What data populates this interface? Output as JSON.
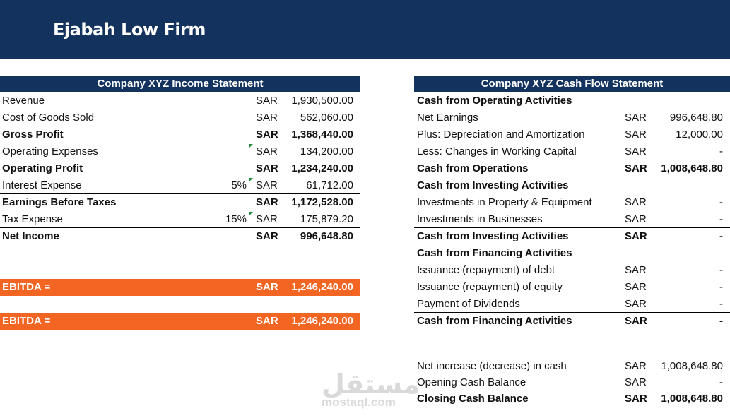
{
  "header": {
    "title": "Ejabah Low Firm"
  },
  "income_statement": {
    "title": "Company XYZ Income Statement",
    "rows": [
      {
        "label": "Revenue",
        "currency": "SAR",
        "amount": "1,930,500.00"
      },
      {
        "label": "Cost of Goods Sold",
        "currency": "SAR",
        "amount": "562,060.00"
      },
      {
        "label": "Gross Profit",
        "currency": "SAR",
        "amount": "1,368,440.00"
      },
      {
        "label": "Operating Expenses",
        "currency": "SAR",
        "amount": "134,200.00"
      },
      {
        "label": "Operating Profit",
        "currency": "SAR",
        "amount": "1,234,240.00"
      },
      {
        "label": "Interest Expense",
        "rate": "5%",
        "currency": "SAR",
        "amount": "61,712.00"
      },
      {
        "label": "Earnings Before Taxes",
        "currency": "SAR",
        "amount": "1,172,528.00"
      },
      {
        "label": "Tax Expense",
        "rate": "15%",
        "currency": "SAR",
        "amount": "175,879.20"
      },
      {
        "label": "Net Income",
        "currency": "SAR",
        "amount": "996,648.80"
      }
    ],
    "ebitda": [
      {
        "label": "EBITDA =",
        "currency": "SAR",
        "amount": "1,246,240.00"
      },
      {
        "label": "EBITDA =",
        "currency": "SAR",
        "amount": "1,246,240.00"
      }
    ]
  },
  "cash_flow_statement": {
    "title": "Company XYZ Cash Flow Statement",
    "rows": [
      {
        "label": "Cash from Operating Activities"
      },
      {
        "label": "Net Earnings",
        "currency": "SAR",
        "amount": "996,648.80"
      },
      {
        "label": "Plus: Depreciation and Amortization",
        "currency": "SAR",
        "amount": "12,000.00"
      },
      {
        "label": "Less: Changes in Working Capital",
        "currency": "SAR",
        "amount": "-"
      },
      {
        "label": "Cash from Operations",
        "currency": "SAR",
        "amount": "1,008,648.80"
      },
      {
        "label": "Cash from Investing Activities"
      },
      {
        "label": "Investments in Property & Equipment",
        "currency": "SAR",
        "amount": "-"
      },
      {
        "label": "Investments in Businesses",
        "currency": "SAR",
        "amount": "-"
      },
      {
        "label": "Cash from Investing Activities",
        "currency": "SAR",
        "amount": "-"
      },
      {
        "label": "Cash from Financing Activities"
      },
      {
        "label": "Issuance (repayment) of debt",
        "currency": "SAR",
        "amount": "-"
      },
      {
        "label": "Issuance (repayment) of equity",
        "currency": "SAR",
        "amount": "-"
      },
      {
        "label": "Payment of Dividends",
        "currency": "SAR",
        "amount": "-"
      },
      {
        "label": "Cash from Financing Activities",
        "currency": "SAR",
        "amount": "-"
      }
    ],
    "summary": [
      {
        "label": "Net increase (decrease) in cash",
        "currency": "SAR",
        "amount": "1,008,648.80"
      },
      {
        "label": "Opening Cash Balance",
        "currency": "SAR",
        "amount": "-"
      },
      {
        "label": "Closing Cash Balance",
        "currency": "SAR",
        "amount": "1,008,648.80"
      }
    ]
  },
  "watermark": {
    "arabic": "مستقل",
    "latin": "mostaql.com"
  }
}
